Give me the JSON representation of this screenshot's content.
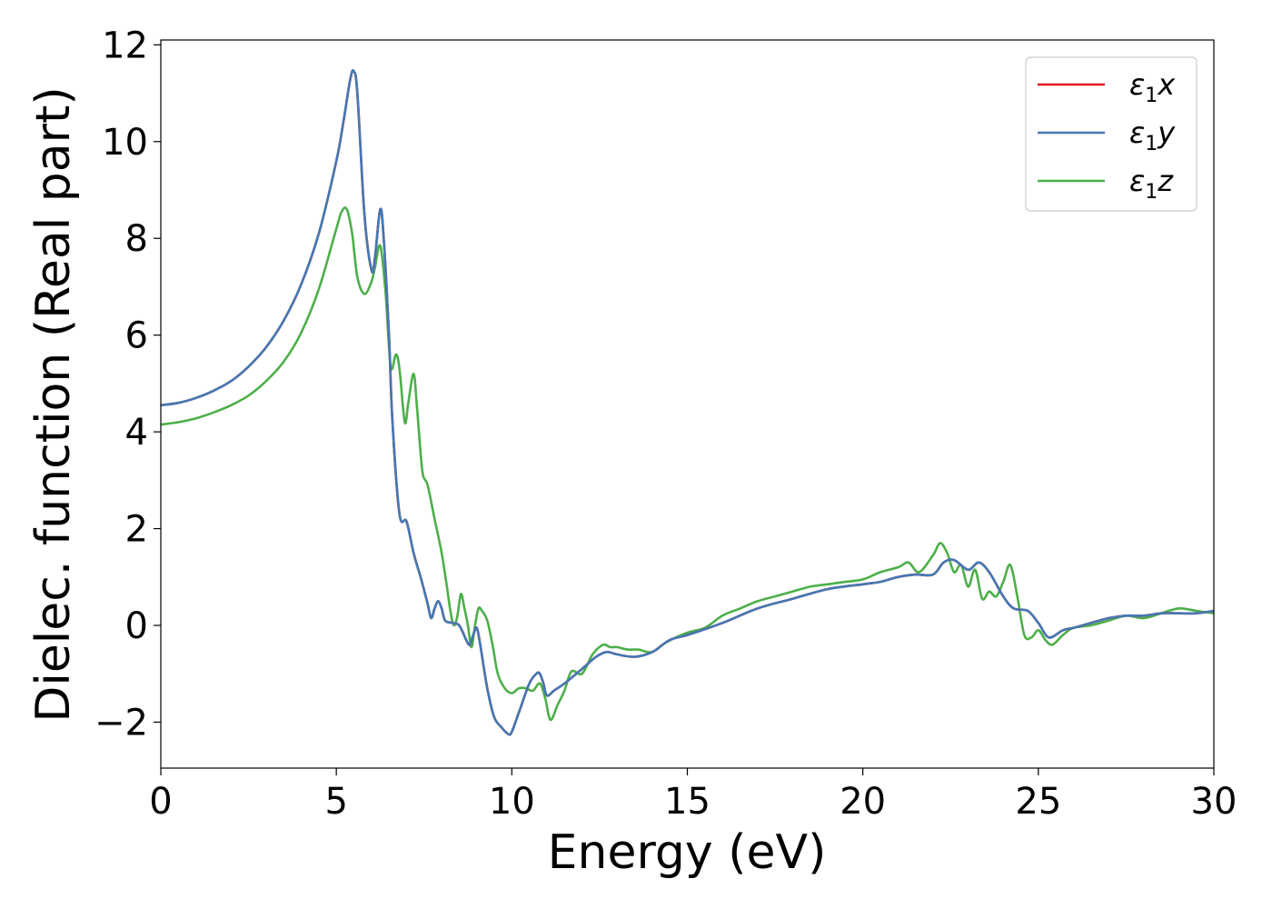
{
  "chart_data": {
    "type": "line",
    "title": "",
    "xlabel": "Energy (eV)",
    "ylabel": "Dielec. function (Real part)",
    "xlim": [
      0,
      30
    ],
    "ylim": [
      -2.95,
      12.1
    ],
    "xticks": [
      0,
      5,
      10,
      15,
      20,
      25,
      30
    ],
    "yticks": [
      -2,
      0,
      2,
      4,
      6,
      8,
      10,
      12
    ],
    "xtick_labels": [
      "0",
      "5",
      "10",
      "15",
      "20",
      "25",
      "30"
    ],
    "ytick_labels": [
      "−2",
      "0",
      "2",
      "4",
      "6",
      "8",
      "10",
      "12"
    ],
    "grid": false,
    "legend_position": "top-right",
    "series": [
      {
        "name": "ε1x",
        "label_main": "ε",
        "label_sub": "1",
        "label_tail": "x",
        "color": "#e41a1c",
        "x": [
          0,
          0.5,
          1,
          1.5,
          2,
          2.5,
          3,
          3.5,
          4,
          4.5,
          5,
          5.2,
          5.4,
          5.5,
          5.6,
          5.8,
          6.0,
          6.1,
          6.25,
          6.35,
          6.5,
          6.6,
          6.8,
          7.0,
          7.2,
          7.4,
          7.6,
          7.7,
          7.8,
          7.9,
          8.0,
          8.1,
          8.3,
          8.5,
          8.7,
          8.8,
          8.9,
          9.0,
          9.1,
          9.3,
          9.5,
          9.7,
          9.9,
          10.0,
          10.2,
          10.5,
          10.7,
          10.8,
          10.9,
          11.0,
          11.2,
          11.5,
          12.0,
          12.4,
          12.7,
          13.0,
          13.5,
          14.0,
          14.5,
          15.0,
          16.0,
          17.0,
          18.0,
          19.0,
          20.0,
          20.5,
          21.0,
          21.5,
          22.0,
          22.3,
          22.6,
          23.0,
          23.3,
          23.6,
          24.0,
          24.3,
          24.7,
          25.0,
          25.3,
          25.7,
          26.0,
          26.5,
          27.0,
          27.5,
          28.0,
          28.5,
          29.0,
          29.5,
          30.0
        ],
        "y": [
          4.55,
          4.6,
          4.7,
          4.85,
          5.05,
          5.35,
          5.75,
          6.3,
          7.05,
          8.1,
          9.6,
          10.4,
          11.3,
          11.45,
          11.0,
          8.5,
          7.35,
          7.6,
          8.6,
          8.0,
          6.0,
          4.2,
          2.3,
          2.15,
          1.5,
          1.0,
          0.45,
          0.15,
          0.35,
          0.5,
          0.35,
          0.1,
          0.05,
          0.0,
          -0.3,
          -0.4,
          -0.2,
          -0.05,
          -0.4,
          -1.3,
          -1.9,
          -2.1,
          -2.25,
          -2.2,
          -1.8,
          -1.2,
          -1.0,
          -1.0,
          -1.2,
          -1.45,
          -1.35,
          -1.2,
          -0.9,
          -0.65,
          -0.55,
          -0.6,
          -0.65,
          -0.55,
          -0.3,
          -0.2,
          0.05,
          0.35,
          0.55,
          0.75,
          0.85,
          0.9,
          1.0,
          1.05,
          1.05,
          1.3,
          1.35,
          1.15,
          1.3,
          1.1,
          0.6,
          0.35,
          0.3,
          0.05,
          -0.25,
          -0.1,
          -0.05,
          0.05,
          0.15,
          0.2,
          0.2,
          0.25,
          0.25,
          0.25,
          0.3
        ]
      },
      {
        "name": "ε1y",
        "label_main": "ε",
        "label_sub": "1",
        "label_tail": "y",
        "color": "#4478b4",
        "x": [
          0,
          0.5,
          1,
          1.5,
          2,
          2.5,
          3,
          3.5,
          4,
          4.5,
          5,
          5.2,
          5.4,
          5.5,
          5.6,
          5.8,
          6.0,
          6.1,
          6.25,
          6.35,
          6.5,
          6.6,
          6.8,
          7.0,
          7.2,
          7.4,
          7.6,
          7.7,
          7.8,
          7.9,
          8.0,
          8.1,
          8.3,
          8.5,
          8.7,
          8.8,
          8.9,
          9.0,
          9.1,
          9.3,
          9.5,
          9.7,
          9.9,
          10.0,
          10.2,
          10.5,
          10.7,
          10.8,
          10.9,
          11.0,
          11.2,
          11.5,
          12.0,
          12.4,
          12.7,
          13.0,
          13.5,
          14.0,
          14.5,
          15.0,
          16.0,
          17.0,
          18.0,
          19.0,
          20.0,
          20.5,
          21.0,
          21.5,
          22.0,
          22.3,
          22.6,
          23.0,
          23.3,
          23.6,
          24.0,
          24.3,
          24.7,
          25.0,
          25.3,
          25.7,
          26.0,
          26.5,
          27.0,
          27.5,
          28.0,
          28.5,
          29.0,
          29.5,
          30.0
        ],
        "y": [
          4.55,
          4.6,
          4.7,
          4.85,
          5.05,
          5.35,
          5.75,
          6.3,
          7.05,
          8.1,
          9.6,
          10.4,
          11.3,
          11.45,
          11.0,
          8.5,
          7.35,
          7.6,
          8.6,
          8.0,
          6.0,
          4.2,
          2.3,
          2.15,
          1.5,
          1.0,
          0.45,
          0.15,
          0.35,
          0.5,
          0.35,
          0.1,
          0.05,
          0.0,
          -0.3,
          -0.4,
          -0.2,
          -0.05,
          -0.4,
          -1.3,
          -1.9,
          -2.1,
          -2.25,
          -2.2,
          -1.8,
          -1.2,
          -1.0,
          -1.0,
          -1.2,
          -1.45,
          -1.35,
          -1.2,
          -0.9,
          -0.65,
          -0.55,
          -0.6,
          -0.65,
          -0.55,
          -0.3,
          -0.2,
          0.05,
          0.35,
          0.55,
          0.75,
          0.85,
          0.9,
          1.0,
          1.05,
          1.05,
          1.3,
          1.35,
          1.15,
          1.3,
          1.1,
          0.6,
          0.35,
          0.3,
          0.05,
          -0.25,
          -0.1,
          -0.05,
          0.05,
          0.15,
          0.2,
          0.2,
          0.25,
          0.25,
          0.25,
          0.3
        ]
      },
      {
        "name": "ε1z",
        "label_main": "ε",
        "label_sub": "1",
        "label_tail": "z",
        "color": "#4daf4a",
        "x": [
          0,
          0.5,
          1,
          1.5,
          2,
          2.5,
          3,
          3.5,
          4,
          4.5,
          5,
          5.15,
          5.3,
          5.45,
          5.6,
          5.8,
          6.0,
          6.1,
          6.25,
          6.4,
          6.55,
          6.7,
          6.8,
          6.95,
          7.05,
          7.2,
          7.3,
          7.45,
          7.6,
          7.8,
          8.0,
          8.15,
          8.25,
          8.35,
          8.45,
          8.55,
          8.65,
          8.75,
          8.85,
          8.95,
          9.05,
          9.15,
          9.3,
          9.45,
          9.6,
          9.8,
          10.0,
          10.2,
          10.4,
          10.6,
          10.8,
          10.95,
          11.1,
          11.3,
          11.5,
          11.7,
          12.0,
          12.3,
          12.6,
          12.8,
          13.0,
          13.3,
          13.6,
          14.0,
          14.4,
          15.0,
          15.5,
          16.0,
          16.5,
          17.0,
          17.5,
          18.0,
          18.5,
          19.0,
          19.5,
          20.0,
          20.5,
          21.0,
          21.3,
          21.6,
          22.0,
          22.2,
          22.4,
          22.6,
          22.8,
          23.0,
          23.2,
          23.4,
          23.6,
          23.8,
          24.0,
          24.2,
          24.4,
          24.6,
          24.8,
          25.0,
          25.2,
          25.4,
          25.7,
          26.0,
          26.5,
          27.0,
          27.5,
          28.0,
          28.5,
          29.0,
          29.5,
          30.0
        ],
        "y": [
          4.15,
          4.2,
          4.28,
          4.4,
          4.55,
          4.75,
          5.05,
          5.45,
          6.05,
          6.95,
          8.2,
          8.55,
          8.6,
          8.1,
          7.2,
          6.85,
          7.1,
          7.4,
          7.85,
          6.9,
          5.35,
          5.6,
          5.3,
          4.2,
          4.6,
          5.2,
          4.5,
          3.2,
          2.9,
          2.2,
          1.5,
          0.8,
          0.3,
          0.0,
          0.2,
          0.65,
          0.35,
          0.0,
          -0.45,
          0.0,
          0.35,
          0.3,
          0.1,
          -0.4,
          -1.0,
          -1.3,
          -1.4,
          -1.3,
          -1.3,
          -1.35,
          -1.2,
          -1.5,
          -1.95,
          -1.65,
          -1.35,
          -0.95,
          -1.0,
          -0.6,
          -0.4,
          -0.45,
          -0.45,
          -0.5,
          -0.5,
          -0.55,
          -0.35,
          -0.15,
          -0.05,
          0.2,
          0.35,
          0.5,
          0.6,
          0.7,
          0.8,
          0.85,
          0.9,
          0.95,
          1.1,
          1.2,
          1.3,
          1.1,
          1.45,
          1.7,
          1.5,
          1.1,
          1.25,
          0.8,
          1.15,
          0.55,
          0.7,
          0.6,
          0.9,
          1.25,
          0.6,
          -0.2,
          -0.25,
          -0.1,
          -0.3,
          -0.4,
          -0.2,
          -0.05,
          0.0,
          0.1,
          0.2,
          0.15,
          0.25,
          0.35,
          0.3,
          0.25
        ]
      }
    ]
  }
}
